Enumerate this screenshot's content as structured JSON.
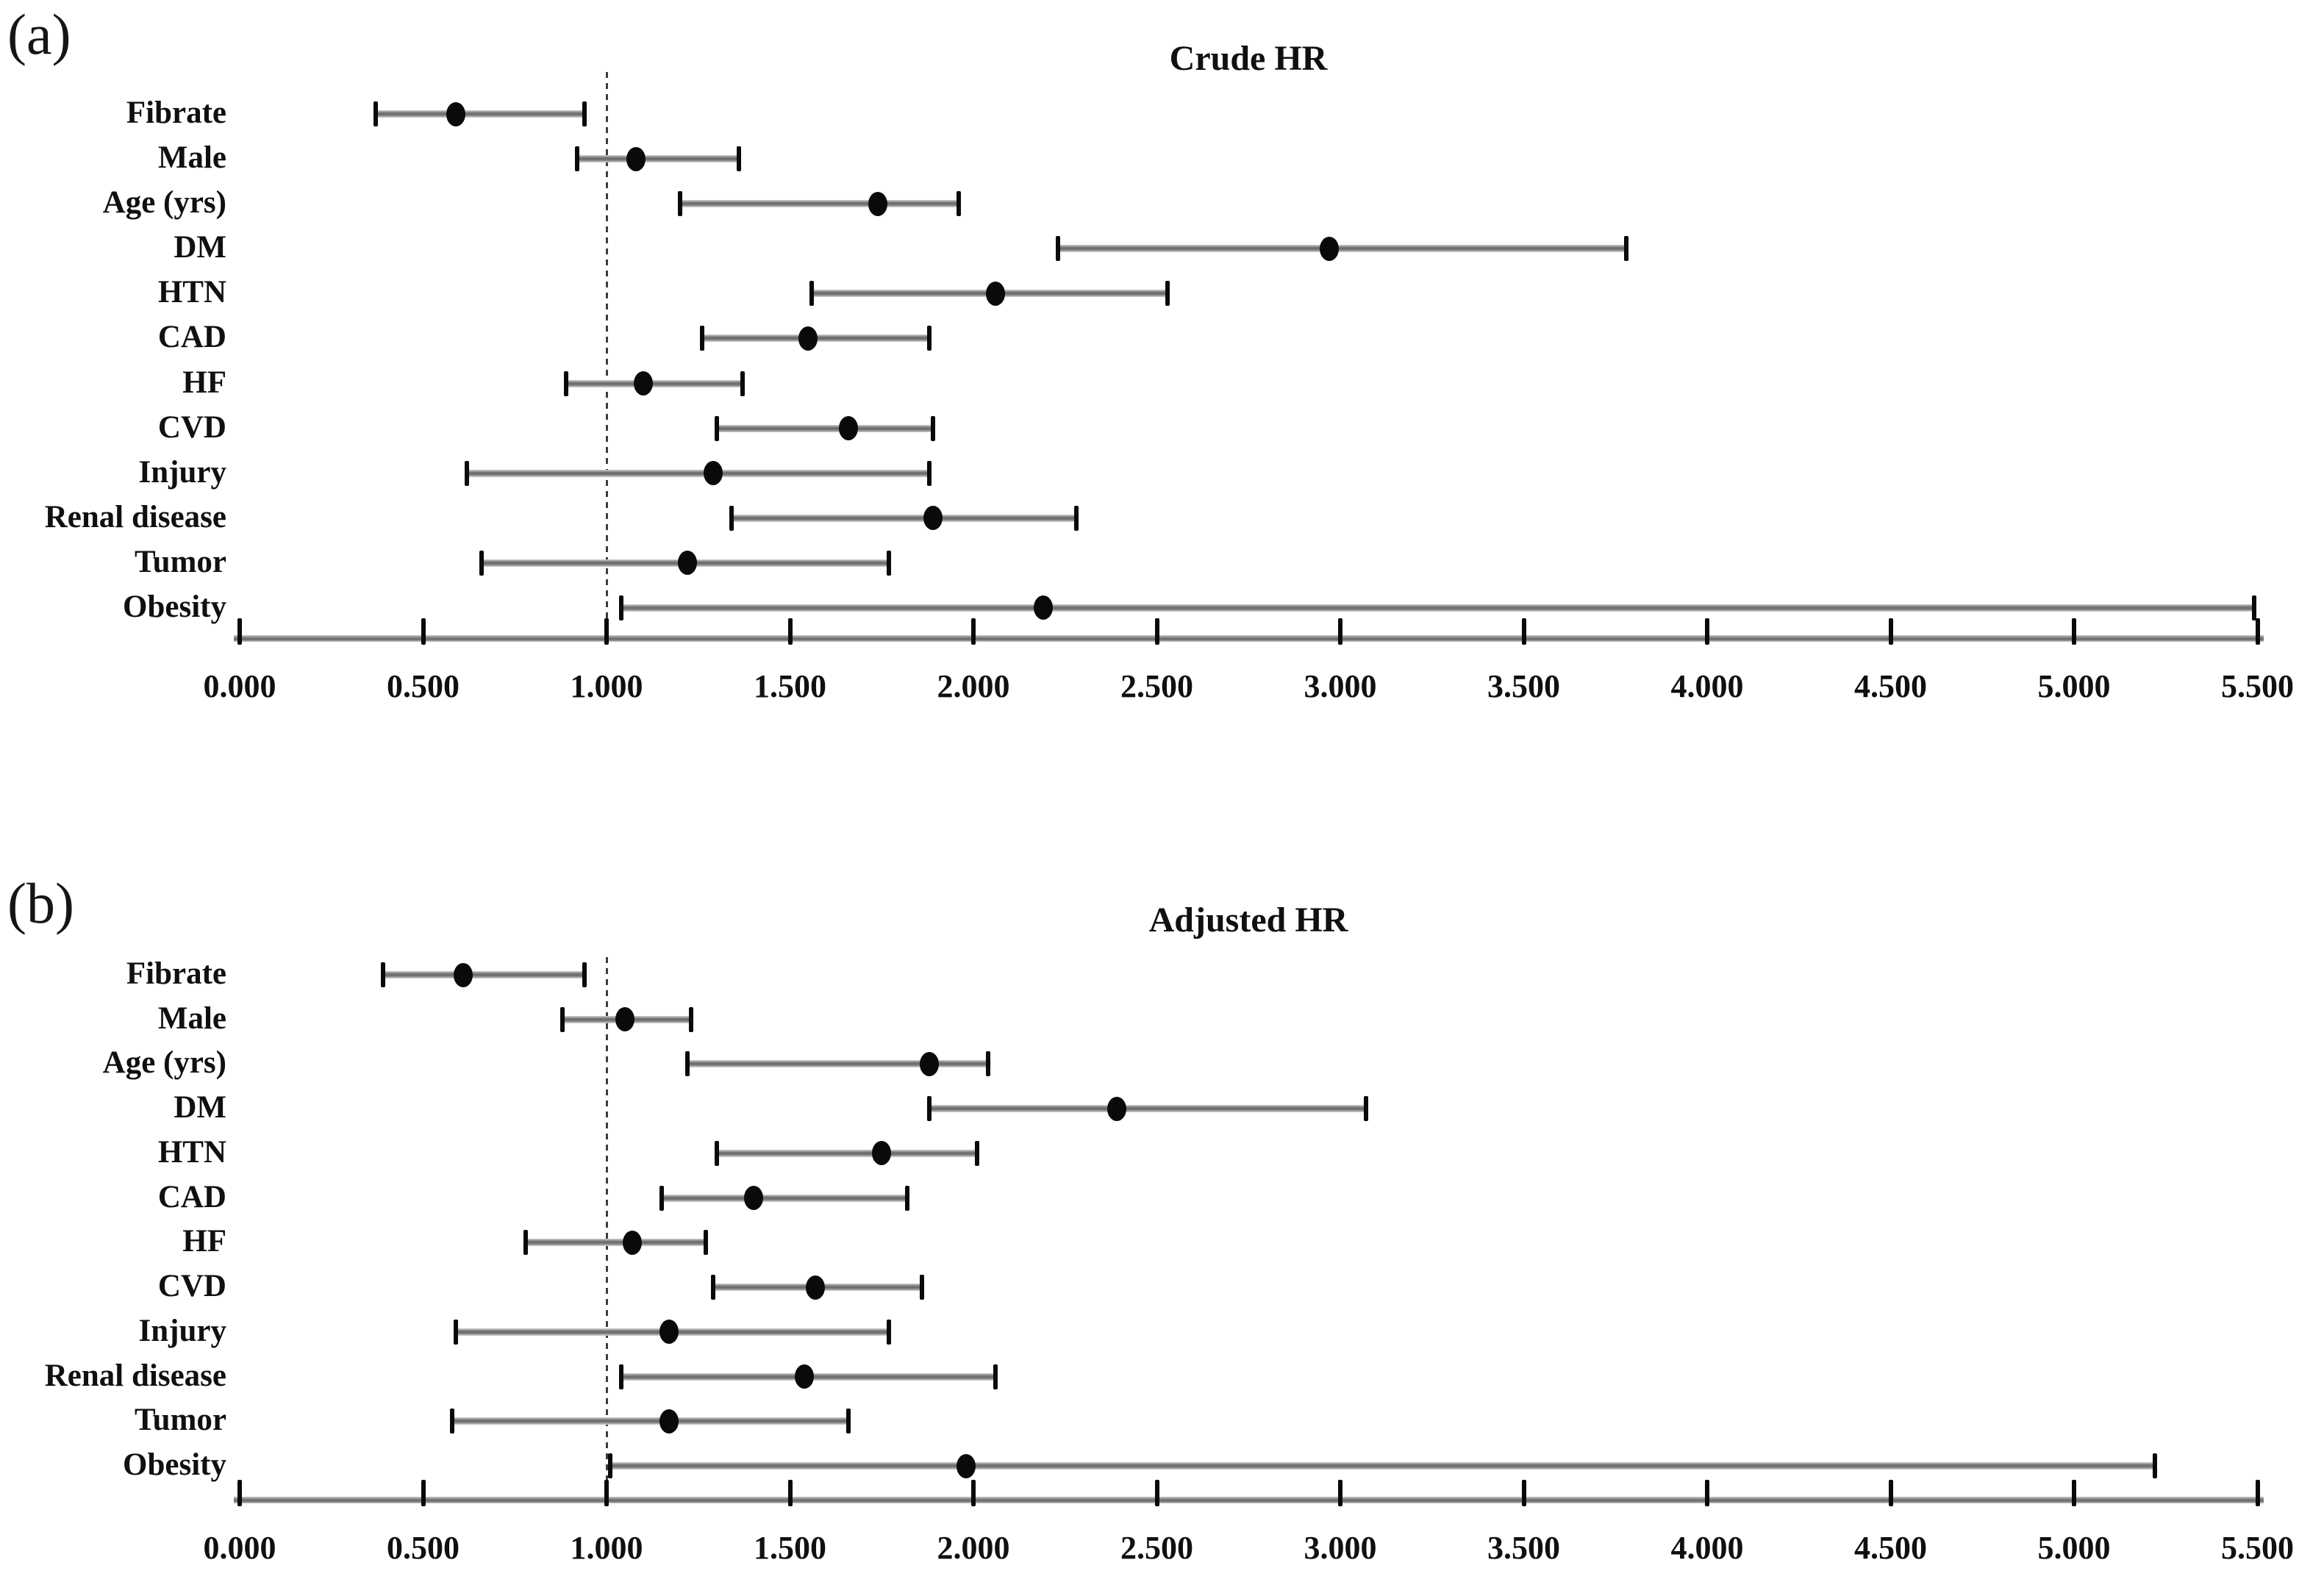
{
  "figure_type": "forest-plot-figure",
  "chart_data": [
    {
      "type": "scatter",
      "subtype": "forest",
      "panel_label": "(a)",
      "title": "Crude HR",
      "categories": [
        "Fibrate",
        "Male",
        "Age (yrs)",
        "DM",
        "HTN",
        "CAD",
        "HF",
        "CVD",
        "Injury",
        "Renal disease",
        "Tumor",
        "Obesity"
      ],
      "series": [
        {
          "name": "HR",
          "values": [
            0.59,
            1.08,
            1.74,
            2.97,
            2.06,
            1.55,
            1.1,
            1.66,
            1.29,
            1.89,
            1.22,
            2.19
          ]
        },
        {
          "name": "CI lower",
          "values": [
            0.37,
            0.92,
            1.2,
            2.23,
            1.56,
            1.26,
            0.89,
            1.3,
            0.62,
            1.34,
            0.66,
            1.04
          ]
        },
        {
          "name": "CI upper",
          "values": [
            0.94,
            1.36,
            1.96,
            3.78,
            2.53,
            1.88,
            1.37,
            1.89,
            1.88,
            2.28,
            1.77,
            5.49
          ]
        }
      ],
      "ref_line": 1.0,
      "xlim": [
        0,
        5.5
      ],
      "x_ticks": [
        "0.000",
        "0.500",
        "1.000",
        "1.500",
        "2.000",
        "2.500",
        "3.000",
        "3.500",
        "4.000",
        "4.500",
        "5.000",
        "5.500"
      ],
      "xlabel": "",
      "ylabel": "",
      "grid": false,
      "legend": "none"
    },
    {
      "type": "scatter",
      "subtype": "forest",
      "panel_label": "(b)",
      "title": "Adjusted HR",
      "categories": [
        "Fibrate",
        "Male",
        "Age (yrs)",
        "DM",
        "HTN",
        "CAD",
        "HF",
        "CVD",
        "Injury",
        "Renal disease",
        "Tumor",
        "Obesity"
      ],
      "series": [
        {
          "name": "HR",
          "values": [
            0.61,
            1.05,
            1.88,
            2.39,
            1.75,
            1.4,
            1.07,
            1.57,
            1.17,
            1.54,
            1.17,
            1.98
          ]
        },
        {
          "name": "CI lower",
          "values": [
            0.39,
            0.88,
            1.22,
            1.88,
            1.3,
            1.15,
            0.78,
            1.29,
            0.59,
            1.04,
            0.58,
            1.01
          ]
        },
        {
          "name": "CI upper",
          "values": [
            0.94,
            1.23,
            2.04,
            3.07,
            2.01,
            1.82,
            1.27,
            1.86,
            1.77,
            2.06,
            1.66,
            5.22
          ]
        }
      ],
      "ref_line": 1.0,
      "xlim": [
        0,
        5.5
      ],
      "x_ticks": [
        "0.000",
        "0.500",
        "1.000",
        "1.500",
        "2.000",
        "2.500",
        "3.000",
        "3.500",
        "4.000",
        "4.500",
        "5.000",
        "5.500"
      ],
      "xlabel": "",
      "ylabel": "",
      "grid": false,
      "legend": "none"
    }
  ]
}
